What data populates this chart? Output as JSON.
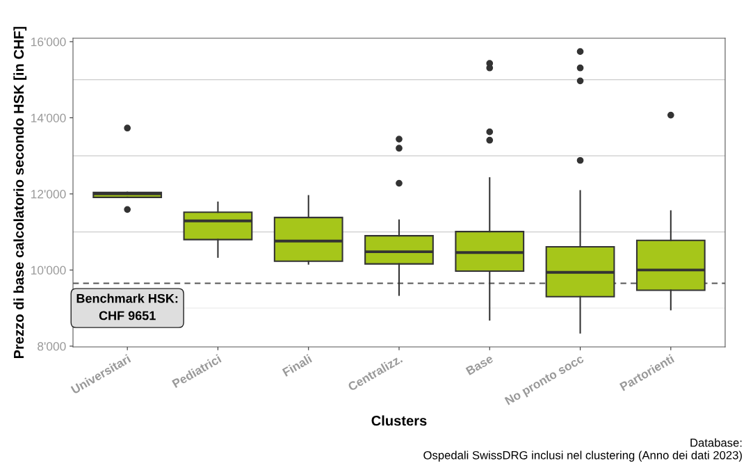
{
  "chart_data": {
    "type": "box",
    "xlabel": "Clusters",
    "ylabel": "Prezzo di base calcolatorio secondo HSK [in CHF]",
    "categories": [
      "Universitari",
      "Pediatrici",
      "Finali",
      "Centralizz.",
      "Base",
      "No pronto socc",
      "Partorienti"
    ],
    "color": "#a6c61a",
    "boxes": [
      {
        "low": 11910,
        "q1": 11910,
        "median": 12000,
        "q3": 12040,
        "high": 12040,
        "outliers": [
          13730,
          11590
        ]
      },
      {
        "low": 10340,
        "q1": 10800,
        "median": 11290,
        "q3": 11520,
        "high": 11780
      },
      {
        "low": 10160,
        "q1": 10230,
        "median": 10760,
        "q3": 11380,
        "high": 11950
      },
      {
        "low": 9340,
        "q1": 10160,
        "median": 10480,
        "q3": 10900,
        "high": 11310,
        "outliers": [
          13440,
          13200,
          12280
        ]
      },
      {
        "low": 8690,
        "q1": 9970,
        "median": 10460,
        "q3": 11010,
        "high": 12420,
        "outliers": [
          15430,
          15310,
          13630,
          13410
        ]
      },
      {
        "low": 8350,
        "q1": 9300,
        "median": 9940,
        "q3": 10610,
        "high": 12080,
        "outliers": [
          15740,
          15310,
          14970,
          12880
        ]
      },
      {
        "low": 8960,
        "q1": 9470,
        "median": 10000,
        "q3": 10780,
        "high": 11550,
        "outliers": [
          14070
        ]
      }
    ],
    "ylim": [
      7980,
      16090
    ],
    "yticks": [
      {
        "value": 8000,
        "label": "8'000"
      },
      {
        "value": 10000,
        "label": "10'000"
      },
      {
        "value": 12000,
        "label": "12'000"
      },
      {
        "value": 14000,
        "label": "14'000"
      },
      {
        "value": 16000,
        "label": "16'000"
      }
    ],
    "ref_lines": [
      {
        "axis": "y",
        "value": 9651,
        "label": "Benchmark HSK:\nCHF 9651",
        "color": "#555555",
        "line_style": "dashed"
      },
      {
        "axis": "y",
        "value": 9000,
        "color": "#ebebeb",
        "line_style": "solid"
      },
      {
        "axis": "y",
        "value": 11000,
        "color": "#cccccc",
        "line_style": "solid"
      },
      {
        "axis": "y",
        "value": 13000,
        "color": "#cccccc",
        "line_style": "solid"
      },
      {
        "axis": "y",
        "value": 15000,
        "color": "#cccccc",
        "line_style": "solid"
      }
    ],
    "grid": false,
    "annotations": [
      "Database:\nOspedali SwissDRG inclusi nel clustering (Anno dei dati 2023)"
    ]
  }
}
